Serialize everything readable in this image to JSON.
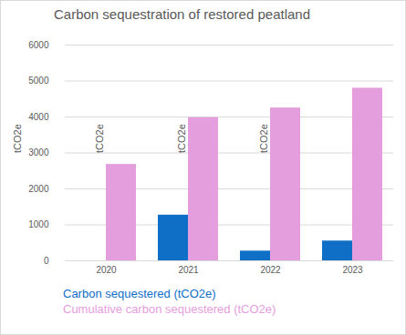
{
  "chart_data": {
    "type": "bar",
    "title": "Carbon sequestration of restored peatland",
    "y_label": "tCO2e",
    "categories": [
      "2020",
      "2021",
      "2022",
      "2023"
    ],
    "series": [
      {
        "name": "Carbon sequestered (tCO2e)",
        "color": "#0f6fc6",
        "values": [
          0,
          1270,
          270,
          550
        ]
      },
      {
        "name": "Cumulative carbon sequestered (tCO2e)",
        "color": "#e59edd",
        "values": [
          2680,
          3980,
          4250,
          4800
        ]
      }
    ],
    "ylim": [
      0,
      6000
    ],
    "yticks": [
      0,
      1000,
      2000,
      3000,
      4000,
      5000,
      6000
    ],
    "grid": true,
    "legend": "bottom"
  }
}
